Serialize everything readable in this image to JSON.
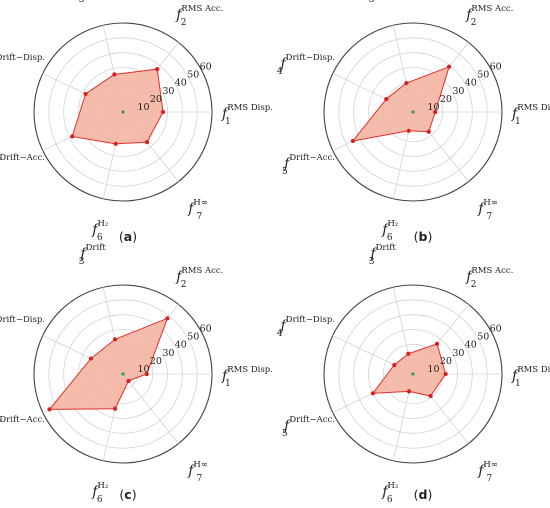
{
  "chart_data": [
    {
      "type": "radar",
      "panel_label": "a",
      "axes": [
        {
          "main": "f",
          "sub": "1",
          "sup": "RMS Disp."
        },
        {
          "main": "f",
          "sub": "2",
          "sup": "RMS Acc."
        },
        {
          "main": "f",
          "sub": "3",
          "sup": "Drift"
        },
        {
          "main": "f",
          "sub": "4",
          "sup": "Drift−Disp."
        },
        {
          "main": "f",
          "sub": "5",
          "sup": "Drift−Acc."
        },
        {
          "main": "f",
          "sub": "6",
          "sup": "H₂"
        },
        {
          "main": "f",
          "sub": "7",
          "sup": "H∞"
        }
      ],
      "rticks": [
        10,
        20,
        30,
        40,
        50,
        60
      ],
      "rlim": [
        0,
        60
      ],
      "values": [
        27,
        37,
        26,
        28,
        38,
        22,
        26
      ]
    },
    {
      "type": "radar",
      "panel_label": "b",
      "axes": [
        {
          "main": "f",
          "sub": "1",
          "sup": "RMS Disp."
        },
        {
          "main": "f",
          "sub": "2",
          "sup": "RMS Acc."
        },
        {
          "main": "f",
          "sub": "3",
          "sup": "Drift"
        },
        {
          "main": "f",
          "sub": "4",
          "sup": "Drift−Disp."
        },
        {
          "main": "f",
          "sub": "5",
          "sup": "Drift−Acc."
        },
        {
          "main": "f",
          "sub": "6",
          "sup": "H₂"
        },
        {
          "main": "f",
          "sub": "7",
          "sup": "H∞"
        }
      ],
      "rticks": [
        10,
        20,
        30,
        40,
        50,
        60
      ],
      "rlim": [
        0,
        60
      ],
      "values": [
        15,
        39,
        20,
        20,
        45,
        13,
        17
      ]
    },
    {
      "type": "radar",
      "panel_label": "c",
      "axes": [
        {
          "main": "f",
          "sub": "1",
          "sup": "RMS Disp."
        },
        {
          "main": "f",
          "sub": "2",
          "sup": "RMS Acc."
        },
        {
          "main": "f",
          "sub": "3",
          "sup": "Drift"
        },
        {
          "main": "f",
          "sub": "4",
          "sup": "Drift−Disp."
        },
        {
          "main": "f",
          "sub": "5",
          "sup": "Drift−Acc."
        },
        {
          "main": "f",
          "sub": "6",
          "sup": "H₂"
        },
        {
          "main": "f",
          "sub": "7",
          "sup": "H∞"
        }
      ],
      "rticks": [
        10,
        20,
        30,
        40,
        50,
        60
      ],
      "rlim": [
        0,
        60
      ],
      "values": [
        16,
        48,
        24,
        24,
        55,
        24,
        6
      ]
    },
    {
      "type": "radar",
      "panel_label": "d",
      "axes": [
        {
          "main": "f",
          "sub": "1",
          "sup": "RMS Disp."
        },
        {
          "main": "f",
          "sub": "2",
          "sup": "RMS Acc."
        },
        {
          "main": "f",
          "sub": "3",
          "sup": "Drift"
        },
        {
          "main": "f",
          "sub": "4",
          "sup": "Drift−Disp."
        },
        {
          "main": "f",
          "sub": "5",
          "sup": "Drift−Acc."
        },
        {
          "main": "f",
          "sub": "6",
          "sup": "H₂"
        },
        {
          "main": "f",
          "sub": "7",
          "sup": "H∞"
        }
      ],
      "rticks": [
        10,
        20,
        30,
        40,
        50,
        60
      ],
      "rlim": [
        0,
        60
      ],
      "values": [
        22,
        26,
        14,
        14,
        30,
        12,
        19
      ]
    }
  ],
  "colors": {
    "fill": "#f5b09c",
    "stroke": "#e0302a",
    "point": "#d81e1e",
    "grid": "#d4d4d4",
    "outer": "#444444",
    "center": "#2f9b6e"
  }
}
